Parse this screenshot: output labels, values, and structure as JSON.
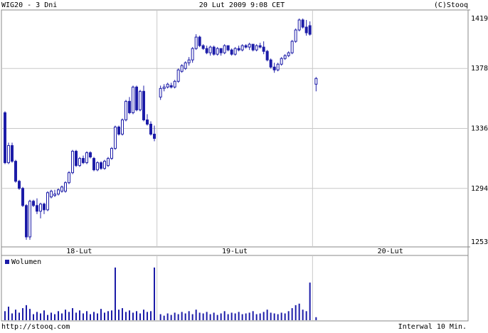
{
  "chart_data": {
    "type": "candlestick",
    "title": "WIG20 - 3 Dni",
    "subtitle": "20 Lut 2009 9:08 CET",
    "credit": "(C)Stooq",
    "source": "http://stooq.com",
    "interval": "Interwal 10 Min.",
    "volume_label": "Wolumen",
    "color": "#1c1ca8",
    "ylim": [
      1253,
      1419
    ],
    "yticks": [
      1253,
      1294,
      1336,
      1378,
      1419
    ],
    "grid": true,
    "days": [
      {
        "label": "18-Lut",
        "ohlc": [
          [
            1347,
            1348,
            1311,
            1312
          ],
          [
            1312,
            1326,
            1311,
            1324
          ],
          [
            1324,
            1326,
            1312,
            1313
          ],
          [
            1313,
            1314,
            1298,
            1299
          ],
          [
            1299,
            1300,
            1293,
            1294
          ],
          [
            1294,
            1295,
            1281,
            1282
          ],
          [
            1282,
            1283,
            1258,
            1260
          ],
          [
            1260,
            1286,
            1258,
            1285
          ],
          [
            1285,
            1286,
            1281,
            1282
          ],
          [
            1282,
            1287,
            1276,
            1278
          ],
          [
            1278,
            1284,
            1273,
            1283
          ],
          [
            1283,
            1284,
            1276,
            1279
          ],
          [
            1279,
            1292,
            1278,
            1291
          ],
          [
            1288,
            1293,
            1287,
            1292
          ],
          [
            1289,
            1293,
            1288,
            1290
          ],
          [
            1290,
            1294,
            1289,
            1293
          ],
          [
            1292,
            1296,
            1291,
            1295
          ],
          [
            1292,
            1299,
            1291,
            1298
          ],
          [
            1298,
            1306,
            1297,
            1305
          ],
          [
            1305,
            1321,
            1304,
            1320
          ],
          [
            1320,
            1321,
            1309,
            1310
          ],
          [
            1310,
            1316,
            1309,
            1315
          ],
          [
            1315,
            1317,
            1311,
            1312
          ],
          [
            1312,
            1320,
            1311,
            1319
          ],
          [
            1319,
            1320,
            1315,
            1316
          ],
          [
            1315,
            1316,
            1306,
            1307
          ],
          [
            1307,
            1313,
            1306,
            1312
          ],
          [
            1312,
            1313,
            1307,
            1308
          ],
          [
            1308,
            1314,
            1307,
            1313
          ],
          [
            1310,
            1316,
            1309,
            1315
          ],
          [
            1315,
            1323,
            1314,
            1322
          ],
          [
            1322,
            1338,
            1321,
            1337
          ],
          [
            1337,
            1338,
            1331,
            1332
          ],
          [
            1332,
            1343,
            1331,
            1342
          ],
          [
            1342,
            1356,
            1341,
            1355
          ],
          [
            1355,
            1358,
            1346,
            1347
          ],
          [
            1347,
            1366,
            1346,
            1365
          ],
          [
            1365,
            1366,
            1348,
            1349
          ],
          [
            1349,
            1363,
            1348,
            1362
          ],
          [
            1362,
            1366,
            1341,
            1342
          ],
          [
            1342,
            1346,
            1338,
            1339
          ],
          [
            1339,
            1341,
            1331,
            1332
          ],
          [
            1332,
            1338,
            1327,
            1329
          ]
        ],
        "volume": [
          12,
          18,
          9,
          14,
          10,
          16,
          20,
          15,
          8,
          11,
          9,
          13,
          7,
          10,
          8,
          12,
          9,
          14,
          11,
          16,
          10,
          13,
          9,
          12,
          8,
          11,
          9,
          15,
          10,
          12,
          13,
          70,
          14,
          16,
          11,
          13,
          10,
          12,
          9,
          14,
          11,
          12,
          70
        ]
      },
      {
        "label": "19-Lut",
        "ohlc": [
          [
            1358,
            1366,
            1356,
            1364
          ],
          [
            1364,
            1367,
            1362,
            1365
          ],
          [
            1365,
            1368,
            1364,
            1367
          ],
          [
            1366,
            1368,
            1364,
            1365
          ],
          [
            1365,
            1370,
            1364,
            1369
          ],
          [
            1369,
            1378,
            1368,
            1377
          ],
          [
            1376,
            1381,
            1375,
            1380
          ],
          [
            1378,
            1383,
            1377,
            1382
          ],
          [
            1382,
            1386,
            1380,
            1384
          ],
          [
            1384,
            1393,
            1382,
            1392
          ],
          [
            1392,
            1402,
            1391,
            1400
          ],
          [
            1400,
            1401,
            1393,
            1394
          ],
          [
            1394,
            1395,
            1391,
            1392
          ],
          [
            1392,
            1394,
            1388,
            1389
          ],
          [
            1389,
            1394,
            1387,
            1393
          ],
          [
            1393,
            1394,
            1387,
            1388
          ],
          [
            1388,
            1393,
            1387,
            1392
          ],
          [
            1392,
            1392,
            1387,
            1389
          ],
          [
            1389,
            1395,
            1388,
            1394
          ],
          [
            1394,
            1394,
            1390,
            1391
          ],
          [
            1391,
            1392,
            1387,
            1388
          ],
          [
            1388,
            1393,
            1387,
            1392
          ],
          [
            1392,
            1394,
            1390,
            1391
          ],
          [
            1391,
            1395,
            1390,
            1394
          ],
          [
            1394,
            1395,
            1392,
            1393
          ],
          [
            1393,
            1396,
            1391,
            1395
          ],
          [
            1395,
            1395,
            1390,
            1391
          ],
          [
            1391,
            1395,
            1390,
            1394
          ],
          [
            1394,
            1396,
            1392,
            1393
          ],
          [
            1393,
            1397,
            1388,
            1390
          ],
          [
            1390,
            1391,
            1383,
            1384
          ],
          [
            1384,
            1385,
            1378,
            1379
          ],
          [
            1379,
            1382,
            1375,
            1377
          ],
          [
            1377,
            1382,
            1376,
            1381
          ],
          [
            1381,
            1386,
            1380,
            1385
          ],
          [
            1385,
            1388,
            1384,
            1387
          ],
          [
            1387,
            1390,
            1386,
            1389
          ],
          [
            1389,
            1398,
            1388,
            1397
          ],
          [
            1397,
            1406,
            1396,
            1405
          ],
          [
            1405,
            1413,
            1404,
            1412
          ],
          [
            1412,
            1413,
            1406,
            1407
          ],
          [
            1407,
            1412,
            1401,
            1403
          ],
          [
            1408,
            1411,
            1401,
            1402
          ]
        ],
        "volume": [
          8,
          6,
          9,
          7,
          10,
          8,
          11,
          9,
          12,
          8,
          14,
          10,
          9,
          11,
          8,
          10,
          7,
          9,
          12,
          8,
          10,
          9,
          11,
          8,
          9,
          10,
          12,
          8,
          9,
          11,
          14,
          10,
          9,
          8,
          10,
          9,
          12,
          16,
          20,
          22,
          14,
          12,
          50
        ]
      },
      {
        "label": "20-Lut",
        "ohlc": [
          [
            1367,
            1372,
            1362,
            1371
          ]
        ],
        "volume": [
          4
        ]
      }
    ]
  }
}
